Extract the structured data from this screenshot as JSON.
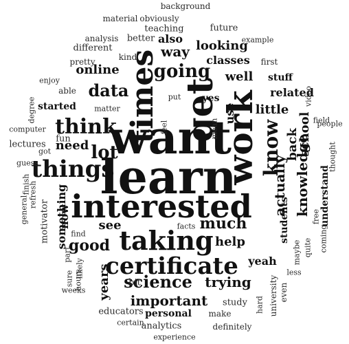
{
  "words": [
    {
      "text": "want"
    },
    {
      "text": "learn"
    },
    {
      "text": "interested"
    },
    {
      "text": "work"
    },
    {
      "text": "times"
    },
    {
      "text": "get"
    },
    {
      "text": "taking"
    },
    {
      "text": "certificate"
    },
    {
      "text": "things"
    },
    {
      "text": "think"
    },
    {
      "text": "going"
    },
    {
      "text": "know"
    },
    {
      "text": "lot"
    },
    {
      "text": "data"
    },
    {
      "text": "actually"
    },
    {
      "text": "knowledge"
    },
    {
      "text": "back"
    },
    {
      "text": "school"
    },
    {
      "text": "use"
    },
    {
      "text": "much"
    },
    {
      "text": "good"
    },
    {
      "text": "science"
    },
    {
      "text": "trying"
    },
    {
      "text": "important"
    },
    {
      "text": "years"
    },
    {
      "text": "help"
    },
    {
      "text": "little"
    },
    {
      "text": "related"
    },
    {
      "text": "well"
    },
    {
      "text": "way"
    },
    {
      "text": "looking"
    },
    {
      "text": "classes"
    },
    {
      "text": "online"
    },
    {
      "text": "need"
    },
    {
      "text": "see"
    },
    {
      "text": "started"
    },
    {
      "text": "something"
    },
    {
      "text": "now"
    },
    {
      "text": "students"
    },
    {
      "text": "understand"
    },
    {
      "text": "yeah"
    },
    {
      "text": "also"
    },
    {
      "text": "teaching"
    },
    {
      "text": "future"
    },
    {
      "text": "different"
    },
    {
      "text": "better"
    },
    {
      "text": "kind"
    },
    {
      "text": "pretty"
    },
    {
      "text": "analysis"
    },
    {
      "text": "obviously"
    },
    {
      "text": "background"
    },
    {
      "text": "material"
    },
    {
      "text": "example"
    },
    {
      "text": "first"
    },
    {
      "text": "stuff"
    },
    {
      "text": "yes"
    },
    {
      "text": "educators"
    },
    {
      "text": "personal"
    },
    {
      "text": "study"
    },
    {
      "text": "make"
    },
    {
      "text": "university"
    },
    {
      "text": "even"
    },
    {
      "text": "analytics"
    },
    {
      "text": "definitely"
    },
    {
      "text": "experience"
    },
    {
      "text": "certain"
    },
    {
      "text": "bit"
    },
    {
      "text": "weeks"
    },
    {
      "text": "hours"
    },
    {
      "text": "sure"
    },
    {
      "text": "likely"
    },
    {
      "text": "part"
    },
    {
      "text": "find"
    },
    {
      "text": "motivator"
    },
    {
      "text": "general"
    },
    {
      "text": "refresh"
    },
    {
      "text": "finish"
    },
    {
      "text": "guess"
    },
    {
      "text": "lectures"
    },
    {
      "text": "fun"
    },
    {
      "text": "computer"
    },
    {
      "text": "got"
    },
    {
      "text": "degree"
    },
    {
      "text": "enjoy"
    },
    {
      "text": "able"
    },
    {
      "text": "matter"
    },
    {
      "text": "put"
    },
    {
      "text": "feel"
    },
    {
      "text": "mean"
    },
    {
      "text": "facts"
    },
    {
      "text": "video"
    },
    {
      "text": "field"
    },
    {
      "text": "people"
    },
    {
      "text": "thought"
    },
    {
      "text": "free"
    },
    {
      "text": "coming"
    },
    {
      "text": "quite"
    },
    {
      "text": "maybe"
    },
    {
      "text": "less"
    },
    {
      "text": "hard"
    }
  ]
}
